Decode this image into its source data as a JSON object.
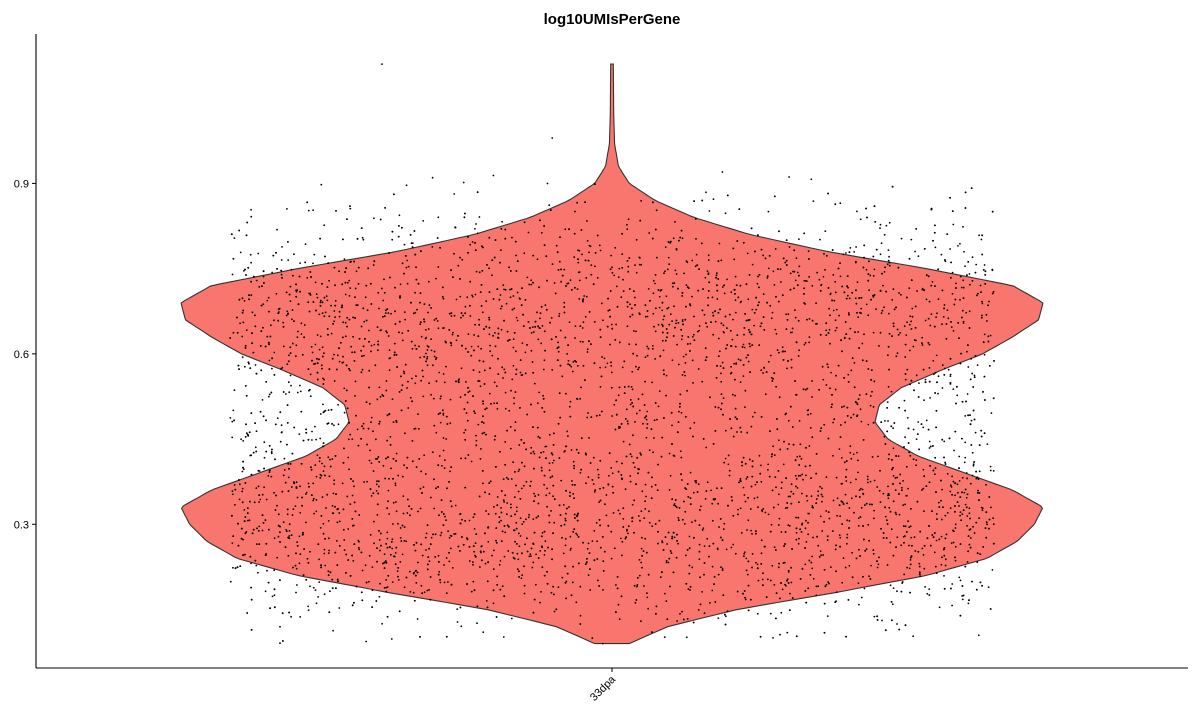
{
  "chart_data": {
    "type": "violin",
    "title": "log10UMIsPerGene",
    "xlabel": "",
    "ylabel": "",
    "categories": [
      "33dpa"
    ],
    "y_ticks": [
      0.3,
      0.6,
      0.9
    ],
    "y_tick_labels": [
      "0.3",
      "0.6",
      "0.9"
    ],
    "ylim": [
      0.047,
      1.163
    ],
    "fill_color": "#F8766D",
    "outline_color": "#333333",
    "point_color": "#000000",
    "series": [
      {
        "category": "33dpa",
        "y_min": 0.09,
        "y_max": 1.11,
        "density_modes": [
          0.33,
          0.69
        ],
        "density_profile": [
          [
            0.09,
            0.04
          ],
          [
            0.12,
            0.13
          ],
          [
            0.15,
            0.29
          ],
          [
            0.18,
            0.52
          ],
          [
            0.21,
            0.73
          ],
          [
            0.24,
            0.87
          ],
          [
            0.27,
            0.94
          ],
          [
            0.3,
            0.98
          ],
          [
            0.33,
            1.0
          ],
          [
            0.36,
            0.93
          ],
          [
            0.39,
            0.82
          ],
          [
            0.42,
            0.71
          ],
          [
            0.45,
            0.64
          ],
          [
            0.48,
            0.61
          ],
          [
            0.51,
            0.62
          ],
          [
            0.54,
            0.67
          ],
          [
            0.57,
            0.76
          ],
          [
            0.6,
            0.86
          ],
          [
            0.63,
            0.93
          ],
          [
            0.66,
            0.99
          ],
          [
            0.69,
            1.0
          ],
          [
            0.72,
            0.93
          ],
          [
            0.75,
            0.73
          ],
          [
            0.78,
            0.5
          ],
          [
            0.81,
            0.32
          ],
          [
            0.84,
            0.19
          ],
          [
            0.87,
            0.1
          ],
          [
            0.9,
            0.04
          ],
          [
            0.93,
            0.015
          ],
          [
            0.97,
            0.006
          ],
          [
            1.02,
            0.004
          ],
          [
            1.11,
            0.003
          ]
        ],
        "n_points_approx": 6000,
        "outliers": [
          1.11,
          0.98,
          0.92,
          0.91,
          0.09,
          0.1,
          0.11
        ]
      }
    ],
    "grid": false,
    "legend": "none"
  }
}
